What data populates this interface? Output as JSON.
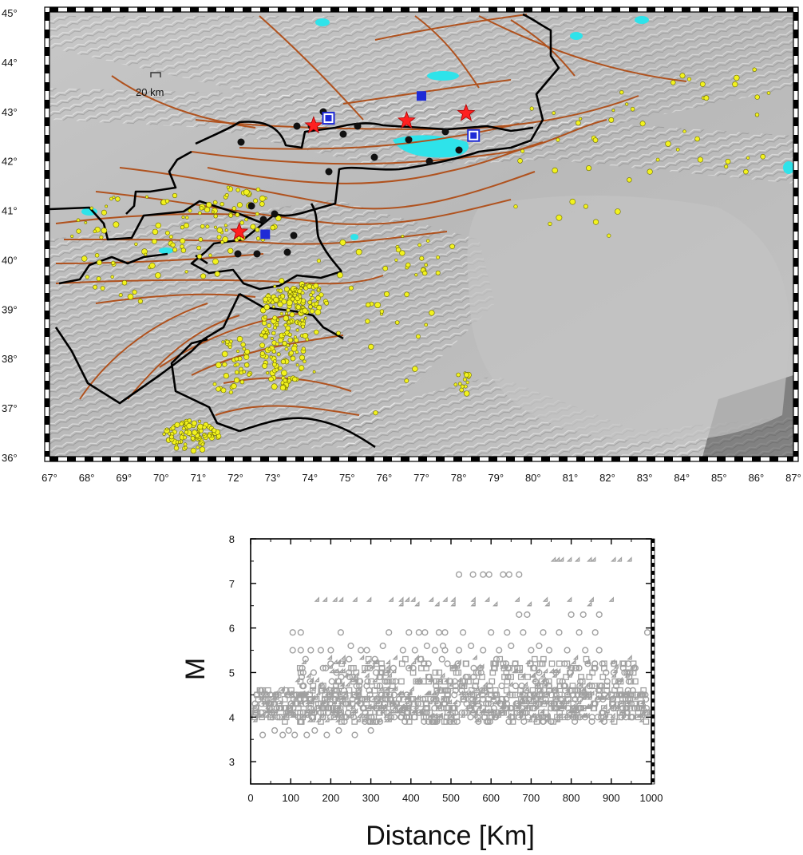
{
  "map": {
    "lat_labels": [
      "45°",
      "44°",
      "43°",
      "42°",
      "41°",
      "40°",
      "39°",
      "38°",
      "37°",
      "36°"
    ],
    "lon_labels": [
      "67°",
      "68°",
      "69°",
      "70°",
      "71°",
      "72°",
      "73°",
      "74°",
      "75°",
      "76°",
      "77°",
      "78°",
      "79°",
      "80°",
      "81°",
      "82°",
      "83°",
      "84°",
      "85°",
      "86°",
      "87°"
    ],
    "scale_label": "20 km",
    "lon_range": [
      67,
      87
    ],
    "lat_range": [
      36,
      45
    ],
    "colors": {
      "fault": "#b0521e",
      "border": "#000000",
      "lake": "#2ee3ea",
      "epicenter": "#f2f21e",
      "station": "#111111",
      "star": "#ff2020",
      "square": "#1f2bd6",
      "terrain": "#bdbdbd"
    },
    "stars": [
      {
        "lon": 72.1,
        "lat": 40.55
      },
      {
        "lon": 74.1,
        "lat": 42.7
      },
      {
        "lon": 76.6,
        "lat": 42.8
      },
      {
        "lon": 78.2,
        "lat": 42.95
      }
    ],
    "squares": [
      {
        "lon": 72.8,
        "lat": 40.5,
        "style": "filled"
      },
      {
        "lon": 74.5,
        "lat": 42.85,
        "style": "framed"
      },
      {
        "lon": 77.0,
        "lat": 43.3,
        "style": "filled"
      },
      {
        "lon": 78.4,
        "lat": 42.5,
        "style": "framed"
      }
    ]
  },
  "chart_data": {
    "type": "scatter",
    "title": "",
    "xlabel": "Distance [Km]",
    "ylabel": "M",
    "xlim": [
      0,
      1000
    ],
    "ylim": [
      2.5,
      8
    ],
    "x_ticks": [
      "0",
      "100",
      "200",
      "300",
      "400",
      "500",
      "600",
      "700",
      "800",
      "900",
      "1000"
    ],
    "y_ticks": [
      "3",
      "4",
      "5",
      "6",
      "7",
      "8"
    ],
    "marker_color": "#a0a0a0",
    "series": [
      {
        "marker": "diamond",
        "points": [
          [
            760,
            7.5
          ],
          [
            770,
            7.5
          ],
          [
            780,
            7.5
          ],
          [
            800,
            7.5
          ],
          [
            820,
            7.5
          ],
          [
            850,
            7.5
          ],
          [
            860,
            7.5
          ],
          [
            910,
            7.5
          ],
          [
            925,
            7.5
          ],
          [
            950,
            7.5
          ],
          [
            170,
            6.6
          ],
          [
            190,
            6.6
          ],
          [
            215,
            6.6
          ],
          [
            230,
            6.6
          ],
          [
            265,
            6.6
          ],
          [
            300,
            6.6
          ],
          [
            355,
            6.6
          ],
          [
            380,
            6.6
          ],
          [
            395,
            6.6
          ],
          [
            410,
            6.6
          ],
          [
            455,
            6.6
          ],
          [
            490,
            6.6
          ],
          [
            510,
            6.6
          ],
          [
            560,
            6.6
          ],
          [
            595,
            6.6
          ],
          [
            670,
            6.6
          ],
          [
            740,
            6.6
          ],
          [
            800,
            6.6
          ],
          [
            855,
            6.6
          ],
          [
            905,
            6.6
          ],
          [
            380,
            6.5
          ],
          [
            420,
            6.5
          ],
          [
            470,
            6.5
          ],
          [
            510,
            6.5
          ],
          [
            560,
            6.5
          ],
          [
            615,
            6.5
          ],
          [
            700,
            6.5
          ],
          [
            745,
            6.5
          ],
          [
            850,
            6.5
          ]
        ]
      },
      {
        "marker": "circle",
        "points": [
          [
            520,
            7.2
          ],
          [
            555,
            7.2
          ],
          [
            580,
            7.2
          ],
          [
            595,
            7.2
          ],
          [
            630,
            7.2
          ],
          [
            645,
            7.2
          ],
          [
            670,
            7.2
          ],
          [
            105,
            5.9
          ],
          [
            125,
            5.9
          ],
          [
            225,
            5.9
          ],
          [
            345,
            5.9
          ],
          [
            395,
            5.9
          ],
          [
            420,
            5.9
          ],
          [
            435,
            5.9
          ],
          [
            470,
            5.9
          ],
          [
            485,
            5.9
          ],
          [
            530,
            5.9
          ],
          [
            600,
            5.9
          ],
          [
            640,
            5.9
          ],
          [
            680,
            5.9
          ],
          [
            730,
            5.9
          ],
          [
            770,
            5.9
          ],
          [
            820,
            5.9
          ],
          [
            860,
            5.9
          ],
          [
            990,
            5.9
          ],
          [
            105,
            5.5
          ],
          [
            125,
            5.5
          ],
          [
            150,
            5.5
          ],
          [
            175,
            5.5
          ],
          [
            200,
            5.5
          ],
          [
            275,
            5.5
          ],
          [
            290,
            5.5
          ],
          [
            380,
            5.5
          ],
          [
            410,
            5.5
          ],
          [
            460,
            5.5
          ],
          [
            485,
            5.5
          ],
          [
            520,
            5.5
          ],
          [
            580,
            5.5
          ],
          [
            620,
            5.5
          ],
          [
            700,
            5.5
          ],
          [
            745,
            5.5
          ],
          [
            790,
            5.5
          ],
          [
            835,
            5.5
          ],
          [
            870,
            5.5
          ],
          [
            670,
            6.3
          ],
          [
            690,
            6.3
          ],
          [
            800,
            6.3
          ],
          [
            830,
            6.3
          ],
          [
            870,
            6.3
          ],
          [
            250,
            5.6
          ],
          [
            330,
            5.6
          ],
          [
            440,
            5.6
          ],
          [
            480,
            5.6
          ],
          [
            550,
            5.6
          ],
          [
            650,
            5.6
          ],
          [
            720,
            5.6
          ],
          [
            30,
            3.6
          ],
          [
            60,
            3.7
          ],
          [
            80,
            3.6
          ],
          [
            95,
            3.7
          ],
          [
            110,
            3.6
          ],
          [
            140,
            3.6
          ],
          [
            160,
            3.7
          ],
          [
            190,
            3.6
          ],
          [
            220,
            3.7
          ],
          [
            260,
            3.6
          ],
          [
            300,
            3.7
          ]
        ]
      }
    ],
    "dense_bands": [
      {
        "x_from": 10,
        "x_to": 990,
        "m_from": 3.9,
        "m_to": 4.6,
        "count": 950
      },
      {
        "x_from": 120,
        "x_to": 960,
        "m_from": 4.6,
        "m_to": 5.3,
        "count": 360
      }
    ]
  }
}
